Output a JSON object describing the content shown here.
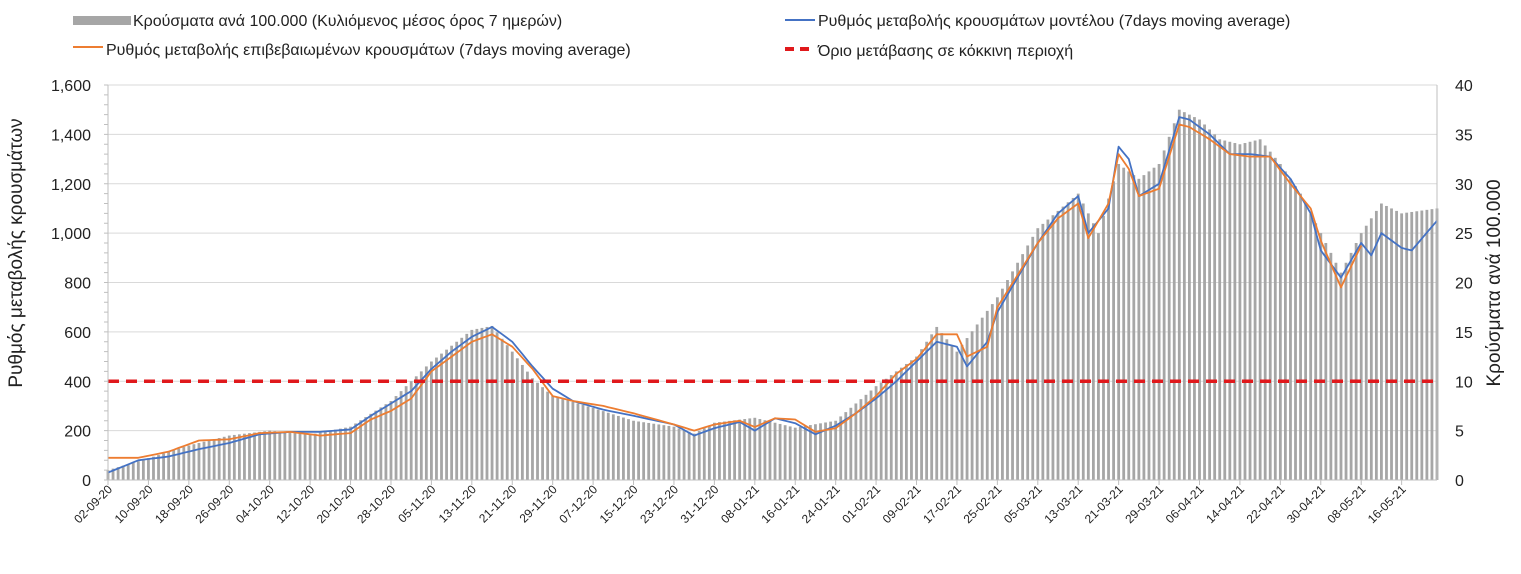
{
  "chart_data": {
    "type": "bar",
    "title": "",
    "ylabel_left": "Ρυθμός μεταβολής κρουσμάτων",
    "ylabel_right": "Κρούσματα ανά 100.000",
    "ylim_left": [
      0,
      1600
    ],
    "ylim_right": [
      0,
      40
    ],
    "yticks_left": [
      "0",
      "200",
      "400",
      "600",
      "800",
      "1,000",
      "1,200",
      "1,400",
      "1,600"
    ],
    "yticks_right": [
      "0",
      "5",
      "10",
      "15",
      "20",
      "25",
      "30",
      "35",
      "40"
    ],
    "grid": true,
    "legend_position": "top",
    "x_start": "2020-09-02",
    "x_end": "2021-05-23",
    "x_tick_labels": [
      "02-09-20",
      "10-09-20",
      "18-09-20",
      "26-09-20",
      "04-10-20",
      "12-10-20",
      "20-10-20",
      "28-10-20",
      "05-11-20",
      "13-11-20",
      "21-11-20",
      "29-11-20",
      "07-12-20",
      "15-12-20",
      "23-12-20",
      "31-12-20",
      "08-01-21",
      "16-01-21",
      "24-01-21",
      "01-02-21",
      "09-02-21",
      "17-02-21",
      "25-02-21",
      "05-03-21",
      "13-03-21",
      "21-03-21",
      "29-03-21",
      "06-04-21",
      "14-04-21",
      "22-04-21",
      "30-04-21",
      "08-05-21",
      "16-05-21"
    ],
    "series": [
      {
        "name": "Κρούσματα ανά 100.000 (Κυλιόμενος μέσος όρος 7 ημερών)",
        "type": "bar",
        "axis": "right",
        "color": "#a6a6a6",
        "points": [
          [
            "2020-09-02",
            1.0
          ],
          [
            "2020-09-10",
            2.2
          ],
          [
            "2020-09-18",
            3.5
          ],
          [
            "2020-09-26",
            4.5
          ],
          [
            "2020-10-04",
            5.0
          ],
          [
            "2020-10-12",
            4.6
          ],
          [
            "2020-10-20",
            5.4
          ],
          [
            "2020-10-28",
            8.0
          ],
          [
            "2020-11-05",
            12.0
          ],
          [
            "2020-11-13",
            15.2
          ],
          [
            "2020-11-17",
            15.6
          ],
          [
            "2020-11-21",
            13.0
          ],
          [
            "2020-11-25",
            10.3
          ],
          [
            "2020-11-29",
            8.5
          ],
          [
            "2020-12-07",
            7.3
          ],
          [
            "2020-12-15",
            6.0
          ],
          [
            "2020-12-23",
            5.4
          ],
          [
            "2020-12-27",
            4.7
          ],
          [
            "2020-12-31",
            5.8
          ],
          [
            "2021-01-08",
            6.3
          ],
          [
            "2021-01-16",
            5.3
          ],
          [
            "2021-01-24",
            6.0
          ],
          [
            "2021-02-01",
            9.5
          ],
          [
            "2021-02-09",
            12.5
          ],
          [
            "2021-02-13",
            15.5
          ],
          [
            "2021-02-17",
            13.0
          ],
          [
            "2021-02-25",
            18.5
          ],
          [
            "2021-03-05",
            25.5
          ],
          [
            "2021-03-13",
            29.0
          ],
          [
            "2021-03-17",
            25.0
          ],
          [
            "2021-03-21",
            32.0
          ],
          [
            "2021-03-25",
            30.5
          ],
          [
            "2021-03-29",
            32.0
          ],
          [
            "2021-04-02",
            37.5
          ],
          [
            "2021-04-06",
            36.5
          ],
          [
            "2021-04-10",
            34.5
          ],
          [
            "2021-04-14",
            34.0
          ],
          [
            "2021-04-18",
            34.5
          ],
          [
            "2021-04-22",
            32.0
          ],
          [
            "2021-04-26",
            29.0
          ],
          [
            "2021-04-30",
            25.0
          ],
          [
            "2021-05-04",
            21.0
          ],
          [
            "2021-05-08",
            25.0
          ],
          [
            "2021-05-12",
            28.0
          ],
          [
            "2021-05-16",
            27.0
          ],
          [
            "2021-05-23",
            27.5
          ]
        ]
      },
      {
        "name": "Ρυθμός μεταβολής κρουσμάτων μοντέλου (7days moving average)",
        "type": "line",
        "axis": "left",
        "color": "#4472c4",
        "points": [
          [
            "2020-09-02",
            30
          ],
          [
            "2020-09-08",
            80
          ],
          [
            "2020-09-14",
            95
          ],
          [
            "2020-09-20",
            125
          ],
          [
            "2020-09-26",
            150
          ],
          [
            "2020-10-02",
            185
          ],
          [
            "2020-10-08",
            195
          ],
          [
            "2020-10-14",
            195
          ],
          [
            "2020-10-20",
            205
          ],
          [
            "2020-10-24",
            260
          ],
          [
            "2020-10-28",
            310
          ],
          [
            "2020-11-01",
            360
          ],
          [
            "2020-11-05",
            450
          ],
          [
            "2020-11-09",
            520
          ],
          [
            "2020-11-13",
            580
          ],
          [
            "2020-11-17",
            620
          ],
          [
            "2020-11-21",
            560
          ],
          [
            "2020-11-25",
            460
          ],
          [
            "2020-11-29",
            370
          ],
          [
            "2020-12-03",
            320
          ],
          [
            "2020-12-09",
            285
          ],
          [
            "2020-12-15",
            260
          ],
          [
            "2020-12-23",
            225
          ],
          [
            "2020-12-27",
            180
          ],
          [
            "2020-12-31",
            210
          ],
          [
            "2021-01-05",
            235
          ],
          [
            "2021-01-08",
            200
          ],
          [
            "2021-01-12",
            250
          ],
          [
            "2021-01-16",
            230
          ],
          [
            "2021-01-20",
            185
          ],
          [
            "2021-01-24",
            220
          ],
          [
            "2021-01-28",
            270
          ],
          [
            "2021-02-01",
            330
          ],
          [
            "2021-02-05",
            400
          ],
          [
            "2021-02-09",
            480
          ],
          [
            "2021-02-13",
            560
          ],
          [
            "2021-02-17",
            540
          ],
          [
            "2021-02-19",
            460
          ],
          [
            "2021-02-23",
            560
          ],
          [
            "2021-02-25",
            680
          ],
          [
            "2021-03-01",
            820
          ],
          [
            "2021-03-05",
            960
          ],
          [
            "2021-03-09",
            1080
          ],
          [
            "2021-03-13",
            1150
          ],
          [
            "2021-03-15",
            1000
          ],
          [
            "2021-03-19",
            1100
          ],
          [
            "2021-03-21",
            1350
          ],
          [
            "2021-03-23",
            1300
          ],
          [
            "2021-03-25",
            1150
          ],
          [
            "2021-03-29",
            1200
          ],
          [
            "2021-04-02",
            1470
          ],
          [
            "2021-04-04",
            1460
          ],
          [
            "2021-04-08",
            1400
          ],
          [
            "2021-04-12",
            1320
          ],
          [
            "2021-04-16",
            1320
          ],
          [
            "2021-04-20",
            1310
          ],
          [
            "2021-04-24",
            1220
          ],
          [
            "2021-04-28",
            1080
          ],
          [
            "2021-04-30",
            930
          ],
          [
            "2021-05-04",
            820
          ],
          [
            "2021-05-08",
            960
          ],
          [
            "2021-05-10",
            910
          ],
          [
            "2021-05-12",
            1000
          ],
          [
            "2021-05-16",
            940
          ],
          [
            "2021-05-18",
            930
          ],
          [
            "2021-05-23",
            1050
          ]
        ]
      },
      {
        "name": "Ρυθμός μεταβολής επιβεβαιωμένων κρουσμάτων (7days moving average)",
        "type": "line",
        "axis": "left",
        "color": "#ed7d31",
        "points": [
          [
            "2020-09-02",
            90
          ],
          [
            "2020-09-08",
            90
          ],
          [
            "2020-09-14",
            115
          ],
          [
            "2020-09-20",
            160
          ],
          [
            "2020-09-26",
            165
          ],
          [
            "2020-10-02",
            190
          ],
          [
            "2020-10-08",
            195
          ],
          [
            "2020-10-14",
            180
          ],
          [
            "2020-10-20",
            190
          ],
          [
            "2020-10-24",
            245
          ],
          [
            "2020-10-28",
            280
          ],
          [
            "2020-11-01",
            330
          ],
          [
            "2020-11-05",
            440
          ],
          [
            "2020-11-09",
            500
          ],
          [
            "2020-11-13",
            560
          ],
          [
            "2020-11-17",
            590
          ],
          [
            "2020-11-21",
            540
          ],
          [
            "2020-11-25",
            450
          ],
          [
            "2020-11-29",
            340
          ],
          [
            "2020-12-03",
            320
          ],
          [
            "2020-12-09",
            300
          ],
          [
            "2020-12-15",
            270
          ],
          [
            "2020-12-23",
            225
          ],
          [
            "2020-12-27",
            200
          ],
          [
            "2020-12-31",
            225
          ],
          [
            "2021-01-05",
            240
          ],
          [
            "2021-01-08",
            215
          ],
          [
            "2021-01-12",
            250
          ],
          [
            "2021-01-16",
            245
          ],
          [
            "2021-01-20",
            195
          ],
          [
            "2021-01-24",
            210
          ],
          [
            "2021-01-28",
            270
          ],
          [
            "2021-02-01",
            340
          ],
          [
            "2021-02-05",
            430
          ],
          [
            "2021-02-09",
            490
          ],
          [
            "2021-02-13",
            590
          ],
          [
            "2021-02-17",
            590
          ],
          [
            "2021-02-19",
            500
          ],
          [
            "2021-02-23",
            540
          ],
          [
            "2021-02-25",
            700
          ],
          [
            "2021-03-01",
            830
          ],
          [
            "2021-03-05",
            960
          ],
          [
            "2021-03-09",
            1060
          ],
          [
            "2021-03-13",
            1120
          ],
          [
            "2021-03-15",
            980
          ],
          [
            "2021-03-19",
            1120
          ],
          [
            "2021-03-21",
            1320
          ],
          [
            "2021-03-23",
            1260
          ],
          [
            "2021-03-25",
            1150
          ],
          [
            "2021-03-29",
            1180
          ],
          [
            "2021-04-02",
            1440
          ],
          [
            "2021-04-04",
            1430
          ],
          [
            "2021-04-08",
            1380
          ],
          [
            "2021-04-12",
            1320
          ],
          [
            "2021-04-16",
            1310
          ],
          [
            "2021-04-20",
            1310
          ],
          [
            "2021-04-24",
            1200
          ],
          [
            "2021-04-28",
            1100
          ],
          [
            "2021-04-30",
            970
          ],
          [
            "2021-05-04",
            780
          ],
          [
            "2021-05-08",
            950
          ]
        ]
      },
      {
        "name": "Όριο μετάβασης σε κόκκινη περιοχή",
        "type": "line",
        "axis": "left",
        "color": "#e0191c",
        "dashed": true,
        "points": [
          [
            "2020-09-02",
            400
          ],
          [
            "2021-05-23",
            400
          ]
        ]
      }
    ]
  }
}
